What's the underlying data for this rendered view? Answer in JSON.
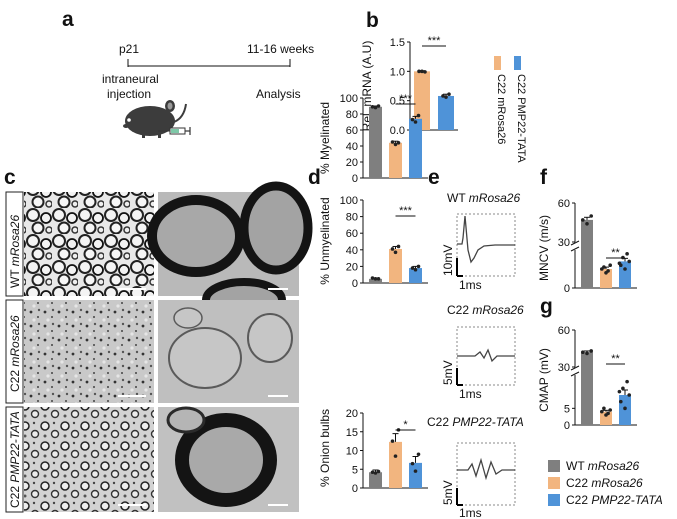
{
  "colors": {
    "wt": "#7f7f7f",
    "c22": "#f2b57f",
    "tata": "#4f93d8"
  },
  "icons": {
    "mouse": "mouse-icon",
    "syringe": "syringe-icon"
  },
  "panel_labels": [
    "a",
    "b",
    "c",
    "d",
    "e",
    "f",
    "g"
  ],
  "panel_a": {
    "start": "p21",
    "end": "11-16 weeks",
    "injection_line1": "intraneural",
    "injection_line2": "injection",
    "analysis": "Analysis"
  },
  "panel_c": {
    "row_labels": [
      {
        "prefix": "WT ",
        "italic": "mRosa26"
      },
      {
        "prefix": "C22 ",
        "italic": "mRosa26"
      },
      {
        "prefix": "C22 ",
        "italic": "PMP22-TATA"
      }
    ]
  },
  "panel_e": {
    "traces": [
      {
        "prefix": "WT ",
        "italic": "mRosa26",
        "scale_y": "10mV",
        "scale_x": "1ms"
      },
      {
        "prefix": "C22 ",
        "italic": "mRosa26",
        "scale_y": "5mV",
        "scale_x": "1ms"
      },
      {
        "prefix": "C22 ",
        "italic": "PMP22-TATA",
        "scale_y": "5mV",
        "scale_x": "1ms"
      }
    ]
  },
  "legend": [
    {
      "prefix": "WT ",
      "italic": "mRosa26",
      "color": "#7f7f7f"
    },
    {
      "prefix": "C22 ",
      "italic": "mRosa26",
      "color": "#f2b57f"
    },
    {
      "prefix": "C22 ",
      "italic": "PMP22-TATA",
      "color": "#4f93d8"
    }
  ],
  "chart_data": [
    {
      "panel": "b",
      "type": "bar",
      "categories": [
        "C22 mRosa26",
        "C22 PMP22-TATA"
      ],
      "values": [
        1.0,
        0.58
      ],
      "errors": [
        0.01,
        0.03
      ],
      "colors": [
        "#f2b57f",
        "#4f93d8"
      ],
      "points": [
        [
          1.0,
          1.0,
          0.99
        ],
        [
          0.56,
          0.58,
          0.61
        ]
      ],
      "ylabel": "Rel. mRNA (A.U)",
      "yticks": [
        "0.0",
        "0.5",
        "1.0",
        "1.5"
      ],
      "ylim": [
        0,
        1.5
      ],
      "significance": "***",
      "legend_labels": [
        "C22 mRosa26",
        "C22 PMP22-TATA"
      ]
    },
    {
      "panel": "d",
      "type": "bar",
      "categories": [
        "WT mRosa26",
        "C22 mRosa26",
        "C22 PMP22-TATA"
      ],
      "values": [
        89,
        44,
        74
      ],
      "errors": [
        1,
        2,
        3
      ],
      "colors": [
        "#7f7f7f",
        "#f2b57f",
        "#4f93d8"
      ],
      "points": [
        [
          88,
          89,
          90
        ],
        [
          42,
          45,
          44
        ],
        [
          70,
          73,
          78
        ]
      ],
      "ylabel": "% Myelinated",
      "yticks": [
        "0",
        "20",
        "40",
        "60",
        "80",
        "100"
      ],
      "ylim": [
        0,
        100
      ],
      "significance": "***"
    },
    {
      "panel": "d",
      "type": "bar",
      "categories": [
        "WT mRosa26",
        "C22 mRosa26",
        "C22 PMP22-TATA"
      ],
      "values": [
        5,
        41,
        18
      ],
      "errors": [
        1,
        3,
        2
      ],
      "colors": [
        "#7f7f7f",
        "#f2b57f",
        "#4f93d8"
      ],
      "points": [
        [
          5,
          6,
          5
        ],
        [
          37,
          41,
          44
        ],
        [
          16,
          18,
          20
        ]
      ],
      "ylabel": "% Unmyelinated",
      "yticks": [
        "0",
        "20",
        "40",
        "60",
        "80",
        "100"
      ],
      "ylim": [
        0,
        100
      ],
      "significance": "***"
    },
    {
      "panel": "d",
      "type": "bar",
      "categories": [
        "WT mRosa26",
        "C22 mRosa26",
        "C22 PMP22-TATA"
      ],
      "values": [
        4.2,
        12.3,
        6.7
      ],
      "errors": [
        0.6,
        2.2,
        1.7
      ],
      "colors": [
        "#7f7f7f",
        "#f2b57f",
        "#4f93d8"
      ],
      "points": [
        [
          4.0,
          4.2,
          4.4
        ],
        [
          8.5,
          12.5,
          15.5
        ],
        [
          4.5,
          6.5,
          9.0
        ]
      ],
      "ylabel": "% Onion bulbs",
      "yticks": [
        "0",
        "5",
        "10",
        "15",
        "20"
      ],
      "ylim": [
        0,
        20
      ],
      "significance": "*"
    },
    {
      "panel": "f",
      "type": "bar",
      "categories": [
        "WT mRosa26",
        "C22 mRosa26",
        "C22 PMP22-TATA"
      ],
      "values": [
        47,
        5,
        7
      ],
      "errors": [
        2,
        0.5,
        0.8
      ],
      "colors": [
        "#7f7f7f",
        "#f2b57f",
        "#4f93d8"
      ],
      "points": [
        [
          44,
          47,
          50
        ],
        [
          4,
          5,
          6,
          5.5,
          4.5
        ],
        [
          5,
          6,
          7,
          8,
          9,
          6.5
        ]
      ],
      "ylabel": "MNCV (m/s)",
      "yticks": [
        "0",
        "30",
        "60"
      ],
      "axis_break": true,
      "significance": "**"
    },
    {
      "panel": "g",
      "type": "bar",
      "categories": [
        "WT mRosa26",
        "C22 mRosa26",
        "C22 PMP22-TATA"
      ],
      "values": [
        42,
        4,
        9
      ],
      "errors": [
        1,
        0.4,
        1.5
      ],
      "colors": [
        "#7f7f7f",
        "#f2b57f",
        "#4f93d8"
      ],
      "points": [
        [
          41,
          42,
          43
        ],
        [
          3,
          4,
          4.5,
          5,
          3.5
        ],
        [
          5,
          7,
          9,
          11,
          13,
          10
        ]
      ],
      "ylabel": "CMAP (mV)",
      "yticks": [
        "0",
        "5",
        "30",
        "60"
      ],
      "axis_break": true,
      "significance": "**"
    }
  ]
}
